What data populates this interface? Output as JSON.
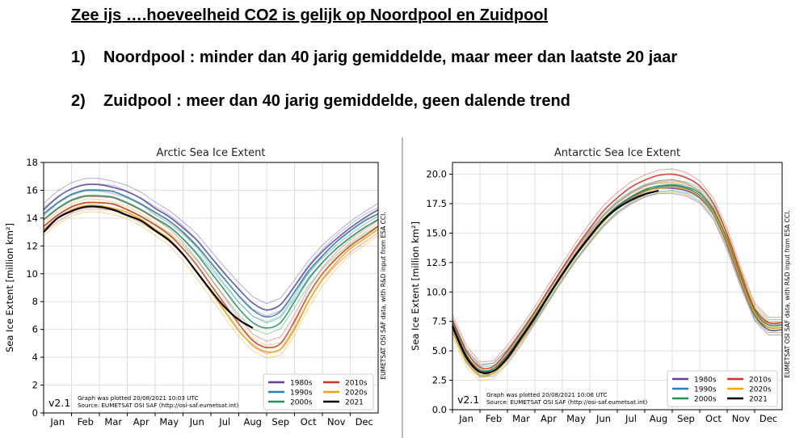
{
  "slide": {
    "heading": "Zee ijs ….hoeveelheid CO2 is gelijk op Noordpool en Zuidpool",
    "points": [
      {
        "num": "1)",
        "text": "Noordpool : minder dan 40 jarig gemiddelde, maar meer dan laatste 20 jaar"
      },
      {
        "num": "2)",
        "text": "Zuidpool : meer dan 40 jarig gemiddelde, geen dalende trend"
      }
    ]
  },
  "colors": {
    "1980s": "#6a3d9a",
    "1990s": "#2c7fb8",
    "2000s": "#1a9850",
    "2010s": "#d7301f",
    "2020s": "#f5a300",
    "2021": "#000000"
  },
  "chart_data": [
    {
      "type": "line",
      "title": "Arctic Sea Ice Extent",
      "ylabel": "Sea Ice Extent [million km²]",
      "ylim": [
        0,
        18
      ],
      "yticks": [
        0,
        2,
        4,
        6,
        8,
        10,
        12,
        14,
        16,
        18
      ],
      "ytick_labels": [
        "0",
        "2",
        "4",
        "6",
        "8",
        "10",
        "12",
        "14",
        "16",
        "18"
      ],
      "x_tick_labels": [
        "Jan",
        "Feb",
        "Mar",
        "Apr",
        "May",
        "Jun",
        "Jul",
        "Aug",
        "Sep",
        "Oct",
        "Nov",
        "Dec"
      ],
      "x_units": "month (1 = Jan 1, 13 = Dec 31)",
      "grid": true,
      "legend_position": "bottom-right",
      "version_label": "v2.1",
      "footnote_lines": [
        "Graph was plotted 20/08/2021 10:03 UTC",
        "Source: EUMETSAT OSI SAF (http://osi-saf.eumetsat.int)"
      ],
      "side_note": "EUMETSAT OSI SAF data, with R&D input from ESA CCI.",
      "legend": [
        "1980s",
        "1990s",
        "2000s",
        "2010s",
        "2020s",
        "2021"
      ],
      "series": [
        {
          "name": "1980s",
          "color": "#6a3d9a",
          "x": [
            1,
            1.5,
            2,
            2.5,
            3,
            3.5,
            4,
            4.5,
            5,
            5.5,
            6,
            6.5,
            7,
            7.5,
            8,
            8.5,
            9,
            9.5,
            10,
            10.5,
            11,
            11.5,
            12,
            12.5,
            13
          ],
          "y": [
            14.6,
            15.5,
            16.1,
            16.4,
            16.4,
            16.2,
            15.9,
            15.4,
            14.7,
            14.1,
            13.3,
            12.4,
            11.2,
            10.0,
            8.9,
            7.9,
            7.4,
            7.8,
            9.1,
            10.5,
            11.6,
            12.5,
            13.3,
            14.0,
            14.6
          ]
        },
        {
          "name": "1990s",
          "color": "#2c7fb8",
          "x": [
            1,
            1.5,
            2,
            2.5,
            3,
            3.5,
            4,
            4.5,
            5,
            5.5,
            6,
            6.5,
            7,
            7.5,
            8,
            8.5,
            9,
            9.5,
            10,
            10.5,
            11,
            11.5,
            12,
            12.5,
            13
          ],
          "y": [
            14.3,
            15.1,
            15.7,
            16.0,
            16.0,
            15.9,
            15.5,
            15.0,
            14.4,
            13.8,
            13.0,
            12.0,
            10.8,
            9.6,
            8.4,
            7.4,
            6.9,
            7.3,
            8.7,
            10.2,
            11.3,
            12.3,
            13.1,
            13.8,
            14.3
          ]
        },
        {
          "name": "2000s",
          "color": "#1a9850",
          "x": [
            1,
            1.5,
            2,
            2.5,
            3,
            3.5,
            4,
            4.5,
            5,
            5.5,
            6,
            6.5,
            7,
            7.5,
            8,
            8.5,
            9,
            9.5,
            10,
            10.5,
            11,
            11.5,
            12,
            12.5,
            13
          ],
          "y": [
            13.9,
            14.7,
            15.3,
            15.6,
            15.6,
            15.5,
            15.1,
            14.6,
            14.0,
            13.4,
            12.5,
            11.4,
            10.1,
            8.8,
            7.5,
            6.5,
            6.1,
            6.5,
            8.0,
            9.6,
            10.8,
            11.8,
            12.6,
            13.3,
            13.9
          ]
        },
        {
          "name": "2010s",
          "color": "#d7301f",
          "x": [
            1,
            1.5,
            2,
            2.5,
            3,
            3.5,
            4,
            4.5,
            5,
            5.5,
            6,
            6.5,
            7,
            7.5,
            8,
            8.5,
            9,
            9.5,
            10,
            10.5,
            11,
            11.5,
            12,
            12.5,
            13
          ],
          "y": [
            13.4,
            14.2,
            14.8,
            15.1,
            15.1,
            15.0,
            14.6,
            14.1,
            13.5,
            12.8,
            11.8,
            10.6,
            9.2,
            7.8,
            6.4,
            5.2,
            4.7,
            5.0,
            6.6,
            8.5,
            10.0,
            11.1,
            12.0,
            12.7,
            13.4
          ]
        },
        {
          "name": "2020s",
          "color": "#f5a300",
          "x": [
            1,
            1.5,
            2,
            2.5,
            3,
            3.5,
            4,
            4.5,
            5,
            5.5,
            6,
            6.5,
            7,
            7.5,
            8,
            8.5,
            9,
            9.5,
            10,
            10.5,
            11,
            11.5,
            12,
            12.5,
            13
          ],
          "y": [
            13.2,
            14.0,
            14.6,
            14.9,
            14.9,
            14.7,
            14.4,
            13.9,
            13.2,
            12.5,
            11.4,
            10.1,
            8.7,
            7.3,
            5.9,
            4.9,
            4.4,
            4.6,
            6.0,
            8.0,
            9.6,
            10.8,
            11.8,
            12.5,
            13.2
          ]
        },
        {
          "name": "2021",
          "color": "#000000",
          "x": [
            1,
            1.5,
            2,
            2.5,
            3,
            3.5,
            4,
            4.5,
            5,
            5.5,
            6,
            6.5,
            7,
            7.5,
            8,
            8.5
          ],
          "y": [
            13.0,
            14.0,
            14.5,
            14.8,
            14.8,
            14.6,
            14.2,
            13.8,
            13.1,
            12.4,
            11.4,
            10.1,
            8.8,
            7.6,
            6.7,
            6.1
          ]
        }
      ]
    },
    {
      "type": "line",
      "title": "Antarctic Sea Ice Extent",
      "ylabel": "Sea Ice Extent [million km²]",
      "ylim": [
        0,
        21
      ],
      "yticks": [
        0,
        2.5,
        5,
        7.5,
        10,
        12.5,
        15,
        17.5,
        20
      ],
      "ytick_labels": [
        "0.0",
        "2.5",
        "5.0",
        "7.5",
        "10.0",
        "12.5",
        "15.0",
        "17.5",
        "20.0"
      ],
      "x_tick_labels": [
        "Jan",
        "Feb",
        "Mar",
        "Apr",
        "May",
        "Jun",
        "Jul",
        "Aug",
        "Sep",
        "Oct",
        "Nov",
        "Dec"
      ],
      "x_units": "month (1 = Jan 1, 13 = Dec 31)",
      "grid": true,
      "legend_position": "bottom-right",
      "version_label": "v2.1",
      "footnote_lines": [
        "Graph was plotted 20/08/2021 10:06 UTC",
        "Source: EUMETSAT OSI SAF (http://osi-saf.eumetsat.int)"
      ],
      "side_note": "EUMETSAT OSI SAF data, with R&D input from ESA CCI.",
      "legend": [
        "1980s",
        "1990s",
        "2000s",
        "2010s",
        "2020s",
        "2021"
      ],
      "series": [
        {
          "name": "1980s",
          "color": "#6a3d9a",
          "x": [
            1,
            1.5,
            2,
            2.5,
            3,
            3.5,
            4,
            4.5,
            5,
            5.5,
            6,
            6.5,
            7,
            7.5,
            8,
            8.5,
            9,
            9.5,
            10,
            10.5,
            11,
            11.5,
            12,
            12.5,
            13
          ],
          "y": [
            7.2,
            4.6,
            3.3,
            3.5,
            4.6,
            6.2,
            7.9,
            9.7,
            11.5,
            13.2,
            14.7,
            16.1,
            17.2,
            18.0,
            18.6,
            18.8,
            18.8,
            18.6,
            18.0,
            16.6,
            14.0,
            10.8,
            8.0,
            6.8,
            6.8
          ]
        },
        {
          "name": "1990s",
          "color": "#2c7fb8",
          "x": [
            1,
            1.5,
            2,
            2.5,
            3,
            3.5,
            4,
            4.5,
            5,
            5.5,
            6,
            6.5,
            7,
            7.5,
            8,
            8.5,
            9,
            9.5,
            10,
            10.5,
            11,
            11.5,
            12,
            12.5,
            13
          ],
          "y": [
            7.0,
            4.4,
            3.2,
            3.3,
            4.4,
            6.0,
            7.8,
            9.6,
            11.4,
            13.1,
            14.6,
            16.0,
            17.1,
            17.9,
            18.5,
            18.9,
            19.0,
            18.8,
            18.2,
            16.8,
            14.2,
            11.0,
            8.1,
            7.0,
            7.0
          ]
        },
        {
          "name": "2000s",
          "color": "#1a9850",
          "x": [
            1,
            1.5,
            2,
            2.5,
            3,
            3.5,
            4,
            4.5,
            5,
            5.5,
            6,
            6.5,
            7,
            7.5,
            8,
            8.5,
            9,
            9.5,
            10,
            10.5,
            11,
            11.5,
            12,
            12.5,
            13
          ],
          "y": [
            7.3,
            4.7,
            3.4,
            3.5,
            4.7,
            6.3,
            8.0,
            9.8,
            11.6,
            13.3,
            14.8,
            16.2,
            17.3,
            18.1,
            18.7,
            19.0,
            19.1,
            18.9,
            18.4,
            17.0,
            14.5,
            11.3,
            8.4,
            7.2,
            7.2
          ]
        },
        {
          "name": "2010s",
          "color": "#d7301f",
          "x": [
            1,
            1.5,
            2,
            2.5,
            3,
            3.5,
            4,
            4.5,
            5,
            5.5,
            6,
            6.5,
            7,
            7.5,
            8,
            8.5,
            9,
            9.5,
            10,
            10.5,
            11,
            11.5,
            12,
            12.5,
            13
          ],
          "y": [
            7.6,
            5.0,
            3.6,
            3.7,
            5.0,
            6.6,
            8.3,
            10.2,
            12.0,
            13.8,
            15.4,
            16.9,
            18.0,
            18.9,
            19.5,
            19.9,
            20.0,
            19.7,
            19.0,
            17.5,
            14.9,
            11.6,
            8.6,
            7.4,
            7.4
          ]
        },
        {
          "name": "2020s",
          "color": "#f5a300",
          "x": [
            1,
            1.5,
            2,
            2.5,
            3,
            3.5,
            4,
            4.5,
            5,
            5.5,
            6,
            6.5,
            7,
            7.5,
            8,
            8.5,
            9,
            9.5,
            10,
            10.5,
            11,
            11.5,
            12,
            12.5,
            13
          ],
          "y": [
            6.6,
            4.1,
            2.9,
            3.1,
            4.3,
            5.9,
            7.7,
            9.6,
            11.4,
            13.1,
            14.6,
            16.0,
            17.1,
            17.9,
            18.5,
            18.8,
            18.9,
            18.7,
            18.1,
            16.7,
            14.2,
            11.0,
            8.2,
            7.0,
            7.0
          ]
        },
        {
          "name": "2021",
          "color": "#000000",
          "x": [
            1,
            1.5,
            2,
            2.5,
            3,
            3.5,
            4,
            4.5,
            5,
            5.5,
            6,
            6.5,
            7,
            7.5,
            8,
            8.5
          ],
          "y": [
            7.1,
            4.5,
            3.2,
            3.3,
            4.4,
            6.1,
            7.8,
            9.7,
            11.5,
            13.2,
            14.7,
            16.1,
            17.1,
            17.8,
            18.3,
            18.6
          ]
        }
      ]
    }
  ]
}
